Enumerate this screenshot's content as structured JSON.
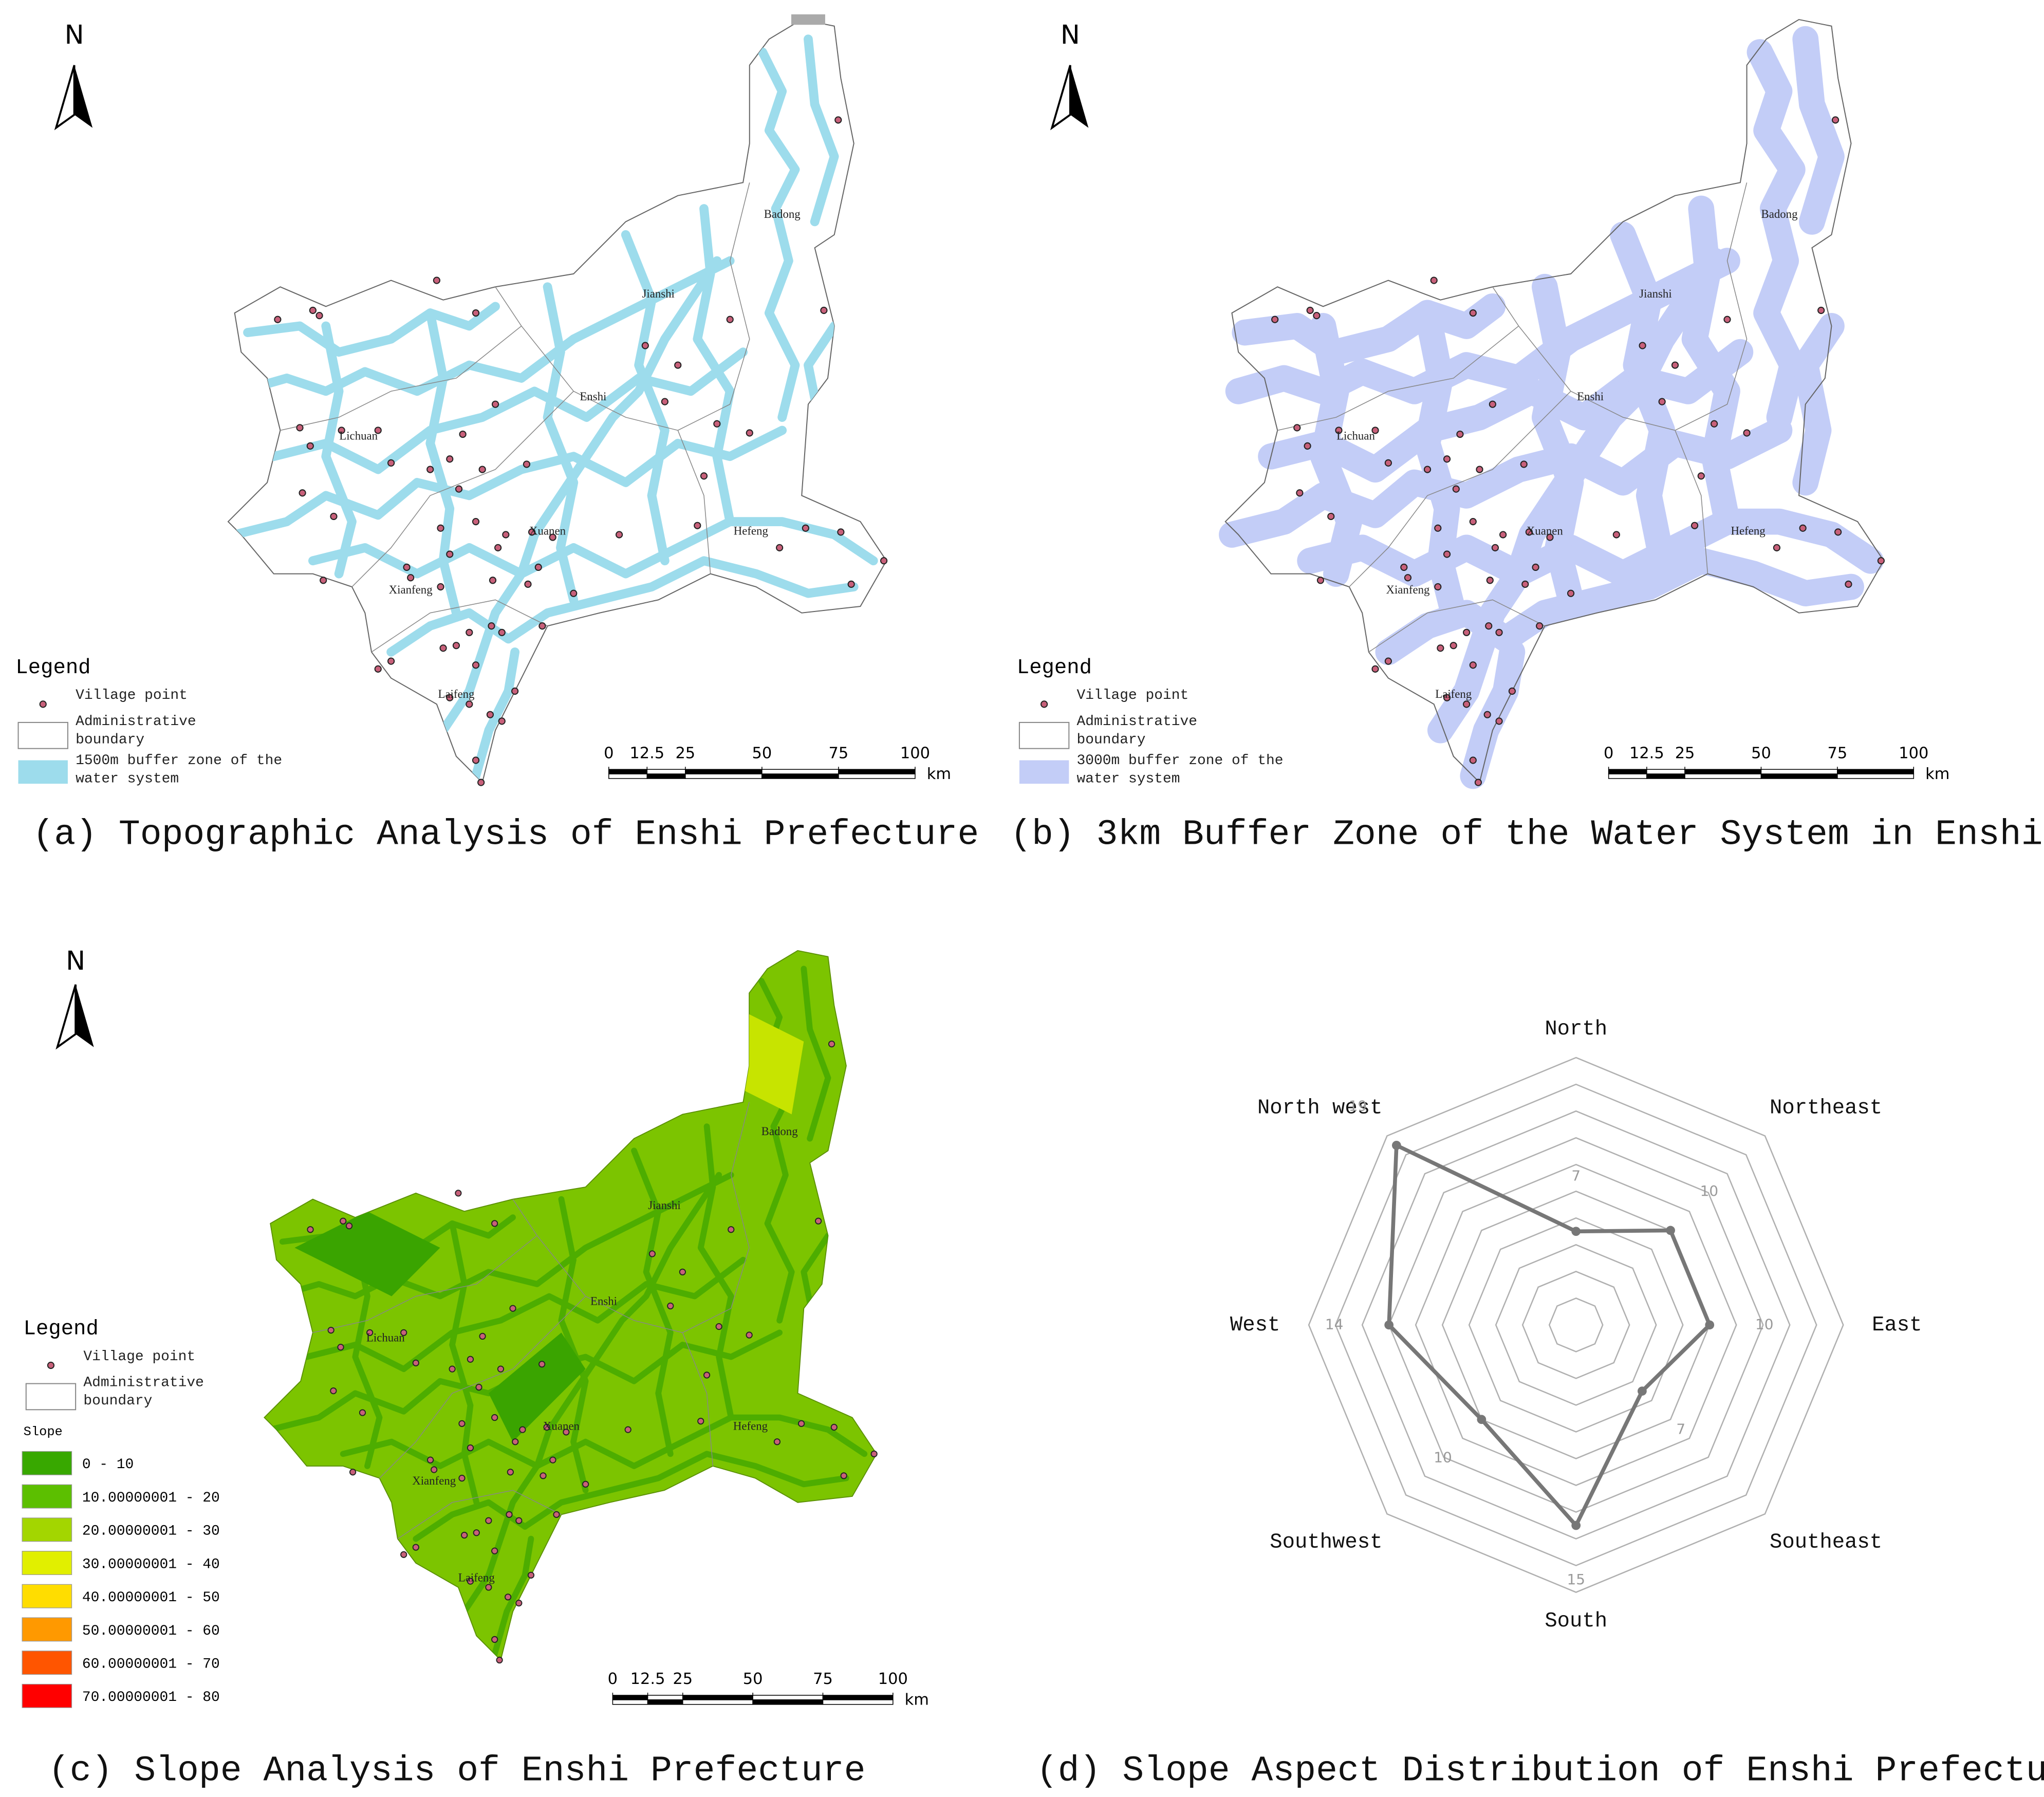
{
  "panels": [
    {
      "caption": "(a) Topographic Analysis of Enshi Prefecture",
      "north": "N",
      "legend": {
        "title": "Legend",
        "items": [
          "Village point",
          "Administrative boundary",
          "1500m buffer zone of the water system"
        ]
      },
      "buffer_color": "#9ddcec",
      "scale": {
        "ticks": [
          0,
          12.5,
          25,
          50,
          75,
          100
        ],
        "unit": "km"
      },
      "places": [
        "Badong",
        "Jianshi",
        "Enshi",
        "Lichuan",
        "Xuanen",
        "Hefeng",
        "Xianfeng",
        "Laifeng"
      ]
    },
    {
      "caption": "(b) 3km Buffer Zone of the Water System in Enshi",
      "north": "N",
      "legend": {
        "title": "Legend",
        "items": [
          "Village point",
          "Administrative boundary",
          "3000m buffer zone of the water system"
        ]
      },
      "buffer_color": "#c3cdf7",
      "scale": {
        "ticks": [
          0,
          12.5,
          25,
          50,
          75,
          100
        ],
        "unit": "km"
      },
      "places": [
        "Badong",
        "Jianshi",
        "Enshi",
        "Lichuan",
        "Xuanen",
        "Hefeng",
        "Xianfeng",
        "Laifeng"
      ]
    },
    {
      "caption": "(c)  Slope Analysis of Enshi Prefecture",
      "north": "N",
      "legend": {
        "title": "Legend",
        "items": [
          "Village point",
          "Administrative boundary"
        ],
        "slope_title": "Slope",
        "classes": [
          {
            "label": "0 - 10",
            "color": "#38a800"
          },
          {
            "label": "10.00000001 - 20",
            "color": "#5cbf00"
          },
          {
            "label": "20.00000001 - 30",
            "color": "#a3d600"
          },
          {
            "label": "30.00000001 - 40",
            "color": "#e1ef00"
          },
          {
            "label": "40.00000001 - 50",
            "color": "#ffdd00"
          },
          {
            "label": "50.00000001 - 60",
            "color": "#ff9900"
          },
          {
            "label": "60.00000001 - 70",
            "color": "#ff5500"
          },
          {
            "label": "70.00000001 - 80",
            "color": "#ff0000"
          }
        ]
      },
      "scale": {
        "ticks": [
          0,
          12.5,
          25,
          50,
          75,
          100
        ],
        "unit": "km"
      },
      "places": [
        "Badong",
        "Jianshi",
        "Enshi",
        "Lichuan",
        "Xuanen",
        "Hefeng",
        "Xianfeng",
        "Laifeng"
      ]
    }
  ],
  "chart_data": {
    "type": "radar",
    "caption": "(d) Slope Aspect Distribution of Enshi Prefecture",
    "categories": [
      "North",
      "Northeast",
      "East",
      "Southeast",
      "South",
      "Southwest",
      "West",
      "North west"
    ],
    "values": [
      7,
      10,
      10,
      7,
      15,
      10,
      14,
      19
    ],
    "color": "#777777",
    "rlim": [
      0,
      20
    ],
    "rticks": [
      2,
      4,
      6,
      8,
      10,
      12,
      14,
      16,
      18,
      20
    ]
  }
}
